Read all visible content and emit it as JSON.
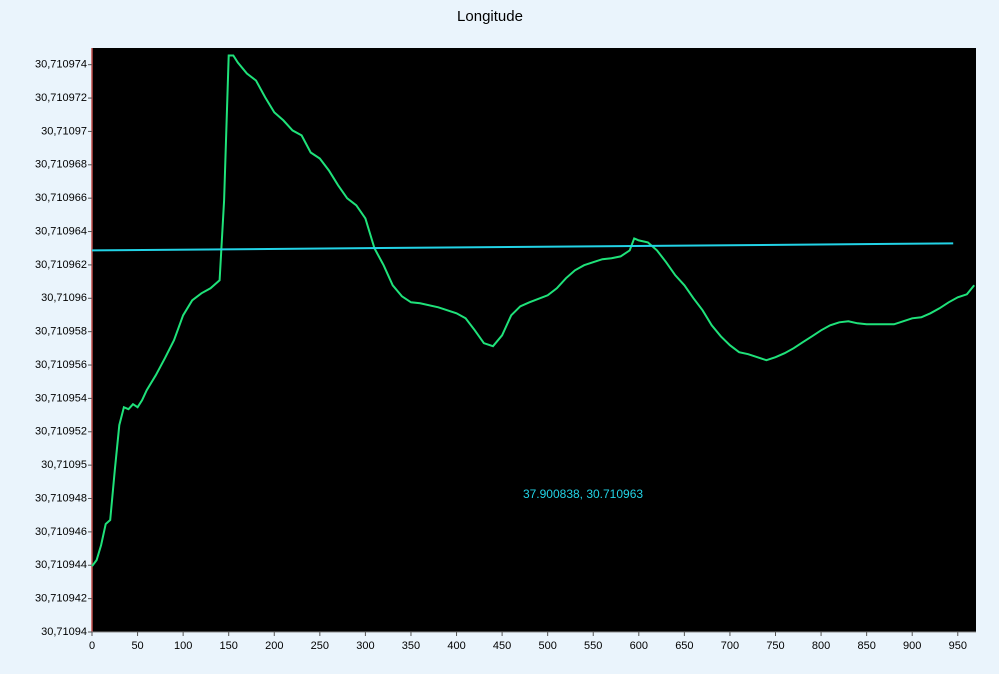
{
  "chart_data": {
    "type": "line",
    "title": "Longitude",
    "annotation": "37.900838, 30.710963",
    "xlim": [
      0,
      970
    ],
    "xticks": [
      0,
      50,
      100,
      150,
      200,
      250,
      300,
      350,
      400,
      450,
      500,
      550,
      600,
      650,
      700,
      750,
      800,
      850,
      900,
      950
    ],
    "ylim": [
      30.71094,
      30.710975
    ],
    "yticks": [
      {
        "value": 30.71094,
        "label": "30,71094"
      },
      {
        "value": 30.710942,
        "label": "30,710942"
      },
      {
        "value": 30.710944,
        "label": "30,710944"
      },
      {
        "value": 30.710946,
        "label": "30,710946"
      },
      {
        "value": 30.710948,
        "label": "30,710948"
      },
      {
        "value": 30.71095,
        "label": "30,71095"
      },
      {
        "value": 30.710952,
        "label": "30,710952"
      },
      {
        "value": 30.710954,
        "label": "30,710954"
      },
      {
        "value": 30.710956,
        "label": "30,710956"
      },
      {
        "value": 30.710958,
        "label": "30,710958"
      },
      {
        "value": 30.71096,
        "label": "30,71096"
      },
      {
        "value": 30.710962,
        "label": "30,710962"
      },
      {
        "value": 30.710964,
        "label": "30,710964"
      },
      {
        "value": 30.710966,
        "label": "30,710966"
      },
      {
        "value": 30.710968,
        "label": "30,710968"
      },
      {
        "value": 30.71097,
        "label": "30,71097"
      },
      {
        "value": 30.710972,
        "label": "30,710972"
      },
      {
        "value": 30.710974,
        "label": "30,710974"
      }
    ],
    "background": "#000000",
    "series": [
      {
        "color": "#1fe27a",
        "x": [
          0,
          5,
          10,
          15,
          20,
          25,
          30,
          35,
          40,
          45,
          50,
          55,
          60,
          70,
          80,
          90,
          100,
          110,
          120,
          130,
          140,
          145,
          150,
          155,
          160,
          170,
          180,
          190,
          200,
          210,
          220,
          230,
          240,
          250,
          260,
          270,
          280,
          290,
          300,
          310,
          320,
          330,
          340,
          350,
          360,
          380,
          400,
          410,
          420,
          430,
          440,
          450,
          460,
          470,
          480,
          500,
          510,
          520,
          530,
          540,
          550,
          560,
          570,
          580,
          590,
          595,
          600,
          610,
          620,
          630,
          640,
          650,
          660,
          670,
          680,
          690,
          700,
          710,
          720,
          730,
          740,
          750,
          760,
          770,
          780,
          790,
          800,
          810,
          820,
          830,
          840,
          850,
          860,
          870,
          880,
          890,
          900,
          910,
          920,
          930,
          940,
          950,
          960,
          968
        ],
        "values": [
          30.71094395,
          30.71094431,
          30.71094521,
          30.71094647,
          30.71094671,
          30.7109497,
          30.7109524,
          30.71095347,
          30.71095335,
          30.71095365,
          30.71095347,
          30.71095389,
          30.71095449,
          30.71095539,
          30.71095641,
          30.71095749,
          30.71095898,
          30.71095988,
          30.7109603,
          30.7109606,
          30.71096108,
          30.71096587,
          30.71097455,
          30.71097455,
          30.71097413,
          30.71097347,
          30.71097305,
          30.71097204,
          30.71097114,
          30.71097066,
          30.71097006,
          30.71096976,
          30.71096874,
          30.71096838,
          30.71096766,
          30.71096677,
          30.71096599,
          30.71096557,
          30.71096479,
          30.71096299,
          30.71096198,
          30.71096078,
          30.71096012,
          30.71095976,
          30.7109597,
          30.71095946,
          30.7109591,
          30.7109588,
          30.71095808,
          30.71095731,
          30.71095713,
          30.71095778,
          30.71095898,
          30.71095952,
          30.71095976,
          30.71096018,
          30.7109606,
          30.7109612,
          30.71096168,
          30.71096198,
          30.71096216,
          30.71096234,
          30.7109624,
          30.71096251,
          30.71096287,
          30.71096359,
          30.71096347,
          30.71096335,
          30.71096287,
          30.71096216,
          30.71096138,
          30.71096078,
          30.71096,
          30.71095928,
          30.71095838,
          30.71095772,
          30.71095719,
          30.71095677,
          30.71095665,
          30.71095647,
          30.71095629,
          30.71095647,
          30.71095671,
          30.71095701,
          30.71095737,
          30.71095772,
          30.71095808,
          30.71095838,
          30.71095856,
          30.71095862,
          30.7109585,
          30.71095844,
          30.71095844,
          30.71095844,
          30.71095844,
          30.71095862,
          30.7109588,
          30.71095886,
          30.7109591,
          30.7109594,
          30.71095976,
          30.71096006,
          30.71096024,
          30.71096078
        ]
      },
      {
        "color": "#22d3e6",
        "x": [
          0,
          945
        ],
        "values": [
          30.71096287,
          30.71096329
        ]
      }
    ]
  }
}
